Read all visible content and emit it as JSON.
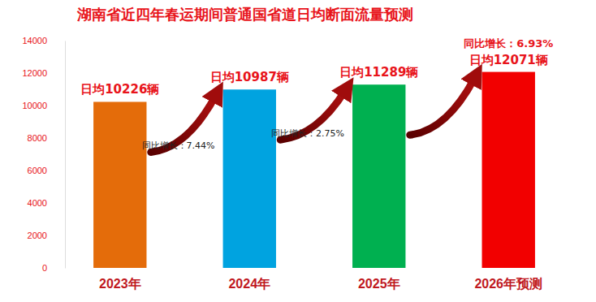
{
  "chart_data": {
    "type": "bar",
    "title": "湖南省近四年春运期间普通国省道日均断面流量预测",
    "categories": [
      "2023年",
      "2024年",
      "2025年",
      "2026年预测"
    ],
    "values": [
      10226,
      10987,
      11289,
      12071
    ],
    "value_labels": [
      "日均10226辆",
      "日均10987辆",
      "日均11289辆",
      "日均12071辆"
    ],
    "colors": [
      "#e46c0a",
      "#00a3e0",
      "#00b050",
      "#f20000"
    ],
    "annotations": [
      "同比增长：7.44%",
      "同比增长：2.75%",
      "同比增长：6.93%"
    ],
    "ylim": [
      0,
      14000
    ],
    "yticks": [
      0,
      2000,
      4000,
      6000,
      8000,
      10000,
      12000,
      14000
    ],
    "grid": false,
    "data_labels": true
  }
}
